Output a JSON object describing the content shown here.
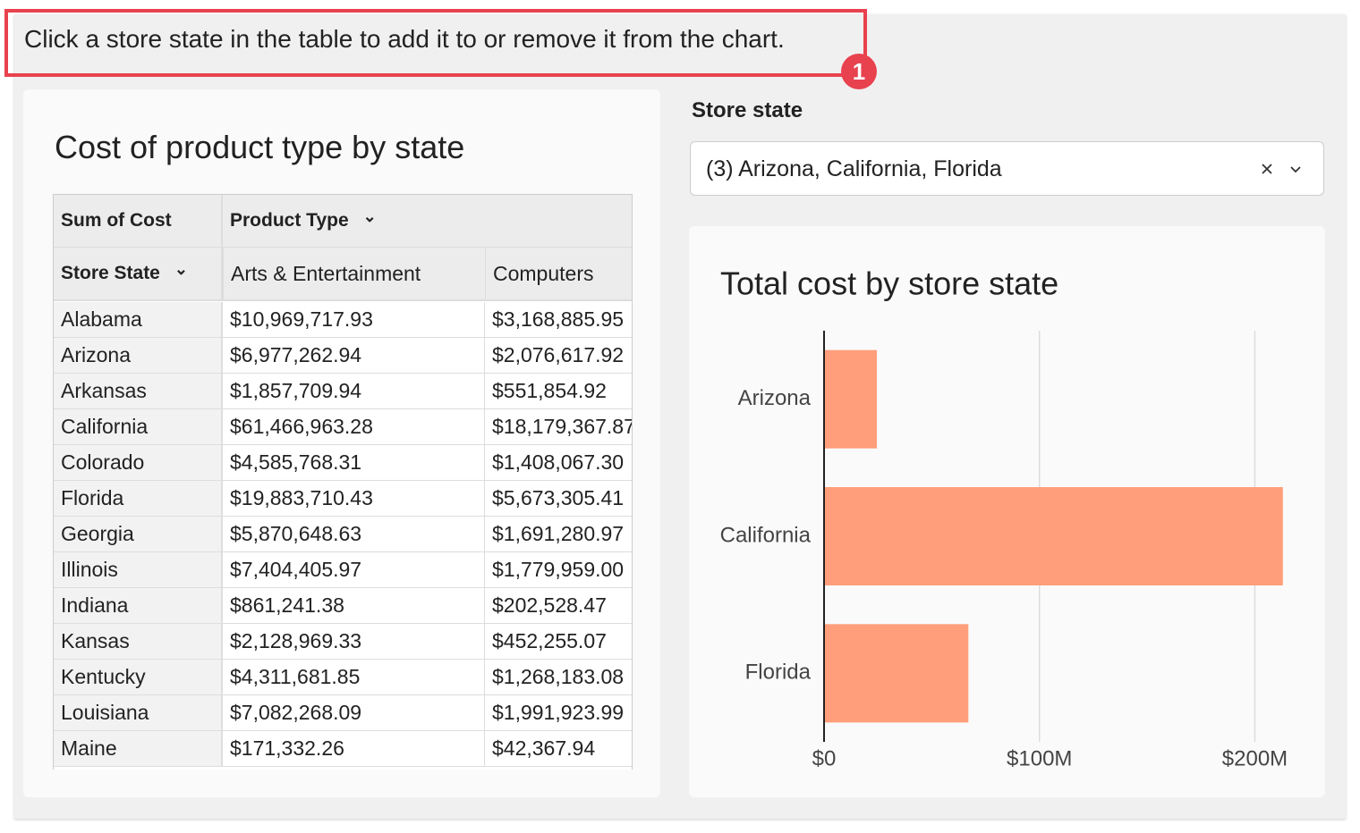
{
  "annotation": {
    "text": "Click a store state in the table to add it to or remove it from the chart.",
    "badge": "1"
  },
  "table": {
    "title": "Cost of product type by state",
    "corner_label": "Sum of Cost",
    "column_group": "Product Type",
    "row_header": "Store State",
    "columns": [
      "Arts & Entertainment",
      "Computers"
    ],
    "rows": [
      [
        "Alabama",
        "$10,969,717.93",
        "$3,168,885.95"
      ],
      [
        "Arizona",
        "$6,977,262.94",
        "$2,076,617.92"
      ],
      [
        "Arkansas",
        "$1,857,709.94",
        "$551,854.92"
      ],
      [
        "California",
        "$61,466,963.28",
        "$18,179,367.87"
      ],
      [
        "Colorado",
        "$4,585,768.31",
        "$1,408,067.30"
      ],
      [
        "Florida",
        "$19,883,710.43",
        "$5,673,305.41"
      ],
      [
        "Georgia",
        "$5,870,648.63",
        "$1,691,280.97"
      ],
      [
        "Illinois",
        "$7,404,405.97",
        "$1,779,959.00"
      ],
      [
        "Indiana",
        "$861,241.38",
        "$202,528.47"
      ],
      [
        "Kansas",
        "$2,128,969.33",
        "$452,255.07"
      ],
      [
        "Kentucky",
        "$4,311,681.85",
        "$1,268,183.08"
      ],
      [
        "Louisiana",
        "$7,082,268.09",
        "$1,991,923.99"
      ],
      [
        "Maine",
        "$171,332.26",
        "$42,367.94"
      ]
    ]
  },
  "filter": {
    "label": "Store state",
    "value": "(3) Arizona, California, Florida"
  },
  "chart_data": {
    "type": "bar",
    "orientation": "horizontal",
    "title": "Total cost by store state",
    "categories": [
      "Arizona",
      "California",
      "Florida"
    ],
    "values": [
      24500000,
      213000000,
      67000000
    ],
    "color": "#ff9e7a",
    "xlim": [
      0,
      216000000
    ],
    "xticks": [
      {
        "value": 0,
        "label": "$0"
      },
      {
        "value": 100000000,
        "label": "$100M"
      },
      {
        "value": 200000000,
        "label": "$200M"
      }
    ],
    "grid": true
  }
}
